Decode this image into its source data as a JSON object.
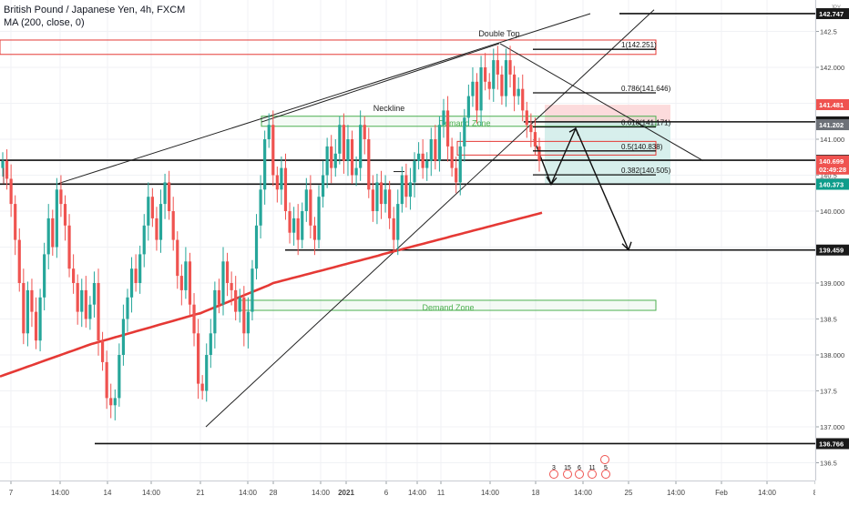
{
  "header": {
    "title": "British Pound / Japanese Yen, 4h, FXCM",
    "indicator": "MA (200, close, 0)"
  },
  "currency_badge": "JPY",
  "colors": {
    "bull": "#26a69a",
    "bear": "#ef5350",
    "ma": "#e53935",
    "zone_green": "#4caf50",
    "zone_red": "#e53935",
    "target_red_fill": "#fbd5d6",
    "target_green_fill": "#d0ece9",
    "price_box": "#1a1a1a",
    "teal_box": "#0f9d8b",
    "red_box": "#ef5350"
  },
  "chart_data": {
    "type": "candlestick",
    "symbol": "GBPJPY",
    "timeframe": "4h",
    "ylim": [
      136.3,
      142.85
    ],
    "y_ticks": [
      "142.5",
      "142.000",
      "141.5",
      "141.000",
      "140.5",
      "140.000",
      "139.5",
      "139.000",
      "138.5",
      "138.000",
      "137.5",
      "137.000",
      "136.5"
    ],
    "y_tick_values": [
      142.5,
      142.0,
      141.5,
      141.0,
      140.5,
      140.0,
      139.5,
      139.0,
      138.5,
      138.0,
      137.5,
      137.0,
      136.5
    ],
    "x_ticks": [
      "7",
      "14:00",
      "14",
      "14:00",
      "21",
      "14:00",
      "28",
      "14:00",
      "2021",
      "6",
      "14:00",
      "11",
      "14:00",
      "18",
      "14:00",
      "25",
      "14:00",
      "Feb",
      "14:00",
      "8"
    ],
    "candles_close": [
      140.7,
      140.45,
      140.1,
      139.6,
      139.0,
      138.3,
      138.9,
      138.6,
      138.2,
      138.8,
      139.4,
      139.9,
      139.5,
      140.3,
      140.1,
      139.8,
      139.2,
      139.0,
      138.6,
      138.9,
      138.5,
      138.7,
      139.0,
      138.2,
      137.9,
      137.4,
      137.3,
      137.4,
      138.0,
      138.5,
      138.8,
      139.2,
      139.0,
      139.4,
      139.8,
      140.2,
      139.9,
      139.6,
      140.1,
      140.4,
      140.0,
      139.6,
      139.1,
      138.9,
      139.3,
      138.7,
      138.3,
      137.6,
      137.5,
      138.0,
      138.3,
      138.9,
      138.7,
      139.3,
      139.0,
      138.9,
      138.6,
      138.8,
      138.3,
      138.6,
      139.2,
      139.8,
      140.3,
      141.0,
      141.2,
      140.5,
      140.3,
      140.6,
      140.0,
      139.7,
      139.9,
      139.6,
      140.0,
      140.3,
      139.8,
      139.6,
      140.2,
      140.5,
      140.9,
      140.6,
      140.8,
      141.2,
      140.7,
      141.0,
      140.5,
      140.6,
      141.2,
      141.0,
      140.3,
      140.0,
      140.4,
      140.1,
      140.3,
      139.9,
      139.6,
      140.1,
      140.5,
      140.2,
      140.4,
      140.7,
      140.8,
      140.6,
      140.7,
      141.0,
      140.7,
      141.2,
      141.4,
      140.9,
      140.6,
      140.4,
      140.9,
      141.3,
      141.6,
      141.8,
      141.4,
      142.0,
      141.8,
      141.7,
      142.1,
      141.9,
      141.6,
      142.1,
      141.9,
      141.6,
      141.7,
      141.4,
      141.2,
      141.1,
      140.9,
      140.7
    ],
    "horizontal_levels": [
      142.747,
      141.242,
      140.708,
      140.376,
      139.459,
      136.766
    ],
    "fib_levels": [
      {
        "label": "1(142.251)",
        "value": 142.251
      },
      {
        "label": "0.786(141.646)",
        "value": 141.646
      },
      {
        "label": "0.618(141.171)",
        "value": 141.171
      },
      {
        "label": "0.5(140.838)",
        "value": 140.838
      },
      {
        "label": "0.382(140.505)",
        "value": 140.505
      }
    ],
    "annotations": [
      "Double Top",
      "Neckline",
      "Demand Zone",
      "Demand Zone"
    ],
    "zones": [
      {
        "label": "Demand Zone",
        "top": 141.32,
        "bottom": 141.18
      },
      {
        "label": "Demand Zone",
        "top": 138.76,
        "bottom": 138.62
      }
    ],
    "price_labels": [
      {
        "text": "142.747",
        "value": 142.747,
        "style": "dark"
      },
      {
        "text": "141.481",
        "value": 141.481,
        "style": "red"
      },
      {
        "text": "141.242",
        "value": 141.242,
        "style": "dark"
      },
      {
        "text": "141.202",
        "value": 141.202,
        "style": "grey"
      },
      {
        "text": "140.708",
        "value": 140.708,
        "style": "dark"
      },
      {
        "text": "140.699",
        "value": 140.699,
        "style": "red"
      },
      {
        "text": "02:49:28",
        "value": 140.585,
        "style": "red"
      },
      {
        "text": "140.376",
        "value": 140.376,
        "style": "dark"
      },
      {
        "text": "140.373",
        "value": 140.373,
        "style": "teal"
      },
      {
        "text": "139.459",
        "value": 139.459,
        "style": "dark"
      },
      {
        "text": "136.766",
        "value": 136.766,
        "style": "dark"
      }
    ],
    "event_markers": [
      "3",
      "15",
      "6",
      "11",
      "5"
    ]
  }
}
